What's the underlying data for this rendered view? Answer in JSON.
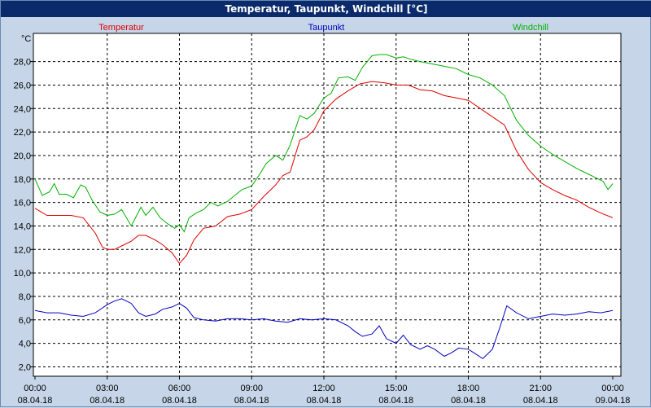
{
  "window": {
    "title": "Temperatur, Taupunkt, Windchill [°C]"
  },
  "chart_data": {
    "type": "line",
    "title": "Temperatur, Taupunkt, Windchill [°C]",
    "ylabel": "°C",
    "ylim": [
      1.2,
      30.4
    ],
    "y_ticks": [
      "2,0",
      "4,0",
      "6,0",
      "8,0",
      "10,0",
      "12,0",
      "14,0",
      "16,0",
      "18,0",
      "20,0",
      "22,0",
      "24,0",
      "26,0",
      "28,0"
    ],
    "y_tick_values": [
      2,
      4,
      6,
      8,
      10,
      12,
      14,
      16,
      18,
      20,
      22,
      24,
      26,
      28
    ],
    "xlim": [
      0,
      24
    ],
    "x_ticks": [
      {
        "h": 0,
        "time": "00:00",
        "date": "08.04.18"
      },
      {
        "h": 3,
        "time": "03:00",
        "date": "08.04.18"
      },
      {
        "h": 6,
        "time": "06:00",
        "date": "08.04.18"
      },
      {
        "h": 9,
        "time": "09:00",
        "date": "08.04.18"
      },
      {
        "h": 12,
        "time": "12:00",
        "date": "08.04.18"
      },
      {
        "h": 15,
        "time": "15:00",
        "date": "08.04.18"
      },
      {
        "h": 18,
        "time": "18:00",
        "date": "08.04.18"
      },
      {
        "h": 21,
        "time": "21:00",
        "date": "08.04.18"
      },
      {
        "h": 24,
        "time": "00:00",
        "date": "09.04.18"
      }
    ],
    "grid": true,
    "series": [
      {
        "name": "Temperatur",
        "color": "#e00000",
        "legend_pos": "left",
        "x": [
          0,
          0.5,
          1,
          1.5,
          2,
          2.5,
          2.8,
          3,
          3.3,
          3.6,
          4,
          4.3,
          4.6,
          5,
          5.3,
          5.7,
          6,
          6.3,
          6.6,
          7,
          7.5,
          8,
          8.5,
          9,
          9.5,
          10,
          10.3,
          10.6,
          11,
          11.3,
          11.6,
          12,
          12.5,
          13,
          13.5,
          14,
          14.5,
          15,
          15.5,
          16,
          16.5,
          17,
          17.5,
          18,
          18.5,
          19,
          19.5,
          20,
          20.5,
          21,
          21.5,
          22,
          22.5,
          23,
          23.5,
          24
        ],
        "values": [
          15.5,
          14.9,
          14.9,
          14.9,
          14.7,
          13.4,
          12.2,
          12.0,
          12.0,
          12.3,
          12.7,
          13.2,
          13.2,
          12.8,
          12.4,
          11.7,
          10.8,
          11.5,
          12.8,
          13.8,
          14.0,
          14.8,
          15.0,
          15.4,
          16.5,
          17.5,
          18.3,
          18.6,
          21.3,
          21.6,
          22.2,
          23.8,
          24.8,
          25.5,
          26.1,
          26.3,
          26.2,
          26.0,
          26.0,
          25.6,
          25.5,
          25.1,
          24.9,
          24.7,
          24.0,
          23.3,
          22.6,
          20.4,
          18.8,
          17.7,
          17.1,
          16.6,
          16.2,
          15.6,
          15.1,
          14.7
        ]
      },
      {
        "name": "Taupunkt",
        "color": "#0000c0",
        "legend_pos": "center",
        "x": [
          0,
          0.5,
          1,
          1.5,
          2,
          2.5,
          3,
          3.3,
          3.6,
          4,
          4.3,
          4.6,
          5,
          5.3,
          5.7,
          6,
          6.3,
          6.6,
          7,
          7.5,
          8,
          8.5,
          9,
          9.5,
          10,
          10.5,
          11,
          11.5,
          12,
          12.5,
          13,
          13.3,
          13.6,
          14,
          14.3,
          14.6,
          15,
          15.3,
          15.6,
          16,
          16.3,
          16.6,
          17,
          17.3,
          17.6,
          18,
          18.3,
          18.6,
          19,
          19.3,
          19.6,
          20,
          20.5,
          21,
          21.5,
          22,
          22.5,
          23,
          23.5,
          24
        ],
        "values": [
          6.8,
          6.6,
          6.6,
          6.4,
          6.3,
          6.6,
          7.3,
          7.6,
          7.8,
          7.4,
          6.6,
          6.3,
          6.5,
          6.9,
          7.1,
          7.4,
          7.0,
          6.2,
          6.0,
          5.9,
          6.1,
          6.1,
          6.0,
          6.1,
          5.9,
          5.8,
          6.1,
          6.0,
          6.1,
          6.0,
          5.5,
          5.0,
          4.6,
          4.8,
          5.5,
          4.4,
          4.0,
          4.7,
          3.9,
          3.5,
          3.8,
          3.5,
          2.9,
          3.2,
          3.6,
          3.5,
          3.1,
          2.7,
          3.5,
          5.3,
          7.2,
          6.6,
          6.1,
          6.3,
          6.5,
          6.4,
          6.5,
          6.7,
          6.6,
          6.8
        ]
      },
      {
        "name": "Windchill",
        "color": "#00b000",
        "legend_pos": "right",
        "x": [
          0,
          0.3,
          0.6,
          0.8,
          1,
          1.3,
          1.6,
          1.9,
          2.1,
          2.4,
          2.7,
          3,
          3.3,
          3.6,
          4,
          4.2,
          4.4,
          4.6,
          4.9,
          5.2,
          5.5,
          5.8,
          6,
          6.2,
          6.4,
          6.7,
          7,
          7.3,
          7.6,
          8,
          8.3,
          8.6,
          9,
          9.3,
          9.6,
          10,
          10.3,
          10.6,
          11,
          11.3,
          11.6,
          12,
          12.3,
          12.6,
          13,
          13.3,
          13.6,
          14,
          14.3,
          14.6,
          15,
          15.3,
          15.6,
          16,
          16.5,
          17,
          17.5,
          18,
          18.5,
          19,
          19.5,
          20,
          20.5,
          21,
          21.5,
          22,
          22.5,
          23,
          23.3,
          23.6,
          23.8,
          24
        ],
        "values": [
          18.0,
          16.6,
          16.9,
          17.6,
          16.7,
          16.7,
          16.4,
          17.5,
          17.3,
          16.1,
          15.2,
          14.9,
          15.0,
          15.4,
          14.0,
          14.8,
          15.6,
          14.9,
          15.6,
          14.7,
          14.2,
          13.8,
          14.1,
          13.5,
          14.7,
          15.1,
          15.4,
          16.0,
          15.7,
          16.1,
          16.6,
          17.1,
          17.4,
          18.3,
          19.3,
          20.0,
          19.6,
          20.9,
          23.4,
          23.1,
          23.6,
          24.9,
          25.3,
          26.6,
          26.7,
          26.4,
          27.5,
          28.5,
          28.6,
          28.6,
          28.3,
          28.4,
          28.2,
          28.0,
          27.8,
          27.6,
          27.4,
          26.9,
          26.6,
          26.0,
          25.1,
          23.0,
          21.7,
          20.8,
          20.1,
          19.5,
          18.9,
          18.4,
          18.1,
          17.8,
          17.1,
          17.6
        ]
      }
    ]
  }
}
